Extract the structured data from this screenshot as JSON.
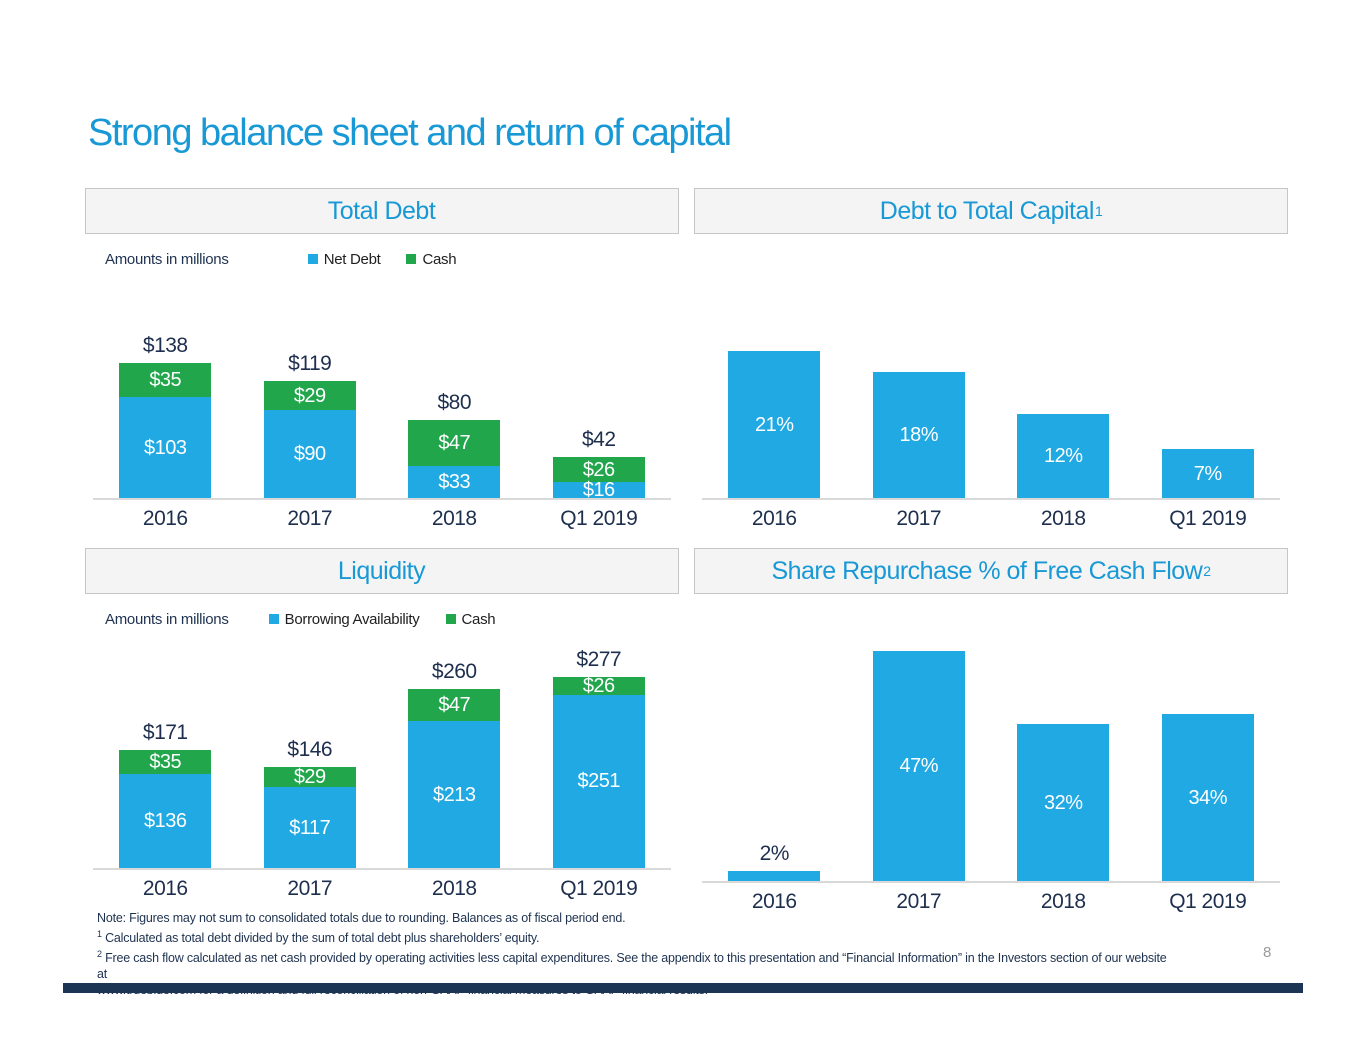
{
  "slide": {
    "title": "Strong balance sheet and return of capital",
    "page_number": "8",
    "colors": {
      "accent_blue": "#1899d6",
      "bar_blue": "#20a9e2",
      "bar_green": "#21a64c",
      "navy_text": "#1e3250",
      "footer_bar": "#1d3554"
    }
  },
  "footnotes": {
    "line1": "Note: Figures may not sum to consolidated totals due to rounding. Balances as of fiscal period end.",
    "line2_sup": "1",
    "line2": " Calculated as total debt divided by the sum of total debt plus shareholders’ equity.",
    "line3_sup": "2",
    "line3": " Free cash flow calculated as net cash provided by operating activities less capital expenditures. See the appendix to this presentation and “Financial Information” in the Investors section of our website at",
    "line4": "www.trueblue.com for a definition and full reconciliation of non-GAAP financial measures to GAAP financial results."
  },
  "chart_data": [
    {
      "type": "bar",
      "stacked": true,
      "title": "Total Debt",
      "title_sup": "",
      "note": "Amounts in millions",
      "unit": "USD millions",
      "categories": [
        "2016",
        "2017",
        "2018",
        "Q1 2019"
      ],
      "series": [
        {
          "name": "Cash",
          "color": "#21a64c",
          "values": [
            35,
            29,
            47,
            26
          ],
          "labels": [
            "$35",
            "$29",
            "$47",
            "$26"
          ]
        },
        {
          "name": "Net Debt",
          "color": "#20a9e2",
          "values": [
            103,
            90,
            33,
            16
          ],
          "labels": [
            "$103",
            "$90",
            "$33",
            "$16"
          ]
        }
      ],
      "legend": [
        {
          "label": "Net Debt",
          "color": "#20a9e2"
        },
        {
          "label": "Cash",
          "color": "#21a64c"
        }
      ],
      "total_labels": [
        "$138",
        "$119",
        "$80",
        "$42"
      ]
    },
    {
      "type": "bar",
      "stacked": false,
      "title": "Debt to Total Capital",
      "title_sup": "1",
      "categories": [
        "2016",
        "2017",
        "2018",
        "Q1 2019"
      ],
      "values": [
        21,
        18,
        12,
        7
      ],
      "value_labels": [
        "21%",
        "18%",
        "12%",
        "7%"
      ],
      "label_placement": [
        "inside",
        "inside",
        "inside",
        "inside"
      ],
      "bar_color": "#20a9e2"
    },
    {
      "type": "bar",
      "stacked": true,
      "title": "Liquidity",
      "title_sup": "",
      "note": "Amounts in millions",
      "unit": "USD millions",
      "categories": [
        "2016",
        "2017",
        "2018",
        "Q1 2019"
      ],
      "series": [
        {
          "name": "Cash",
          "color": "#21a64c",
          "values": [
            35,
            29,
            47,
            26
          ],
          "labels": [
            "$35",
            "$29",
            "$47",
            "$26"
          ]
        },
        {
          "name": "Borrowing Availability",
          "color": "#20a9e2",
          "values": [
            136,
            117,
            213,
            251
          ],
          "labels": [
            "$136",
            "$117",
            "$213",
            "$251"
          ]
        }
      ],
      "legend": [
        {
          "label": "Borrowing Availability",
          "color": "#20a9e2"
        },
        {
          "label": "Cash",
          "color": "#21a64c"
        }
      ],
      "total_labels": [
        "$171",
        "$146",
        "$260",
        "$277"
      ]
    },
    {
      "type": "bar",
      "stacked": false,
      "title": "Share Repurchase % of Free Cash Flow",
      "title_sup": "2",
      "categories": [
        "2016",
        "2017",
        "2018",
        "Q1 2019"
      ],
      "values": [
        2,
        47,
        32,
        34
      ],
      "value_labels": [
        "2%",
        "47%",
        "32%",
        "34%"
      ],
      "label_placement": [
        "above",
        "inside",
        "inside",
        "inside"
      ],
      "bar_color": "#20a9e2"
    }
  ]
}
